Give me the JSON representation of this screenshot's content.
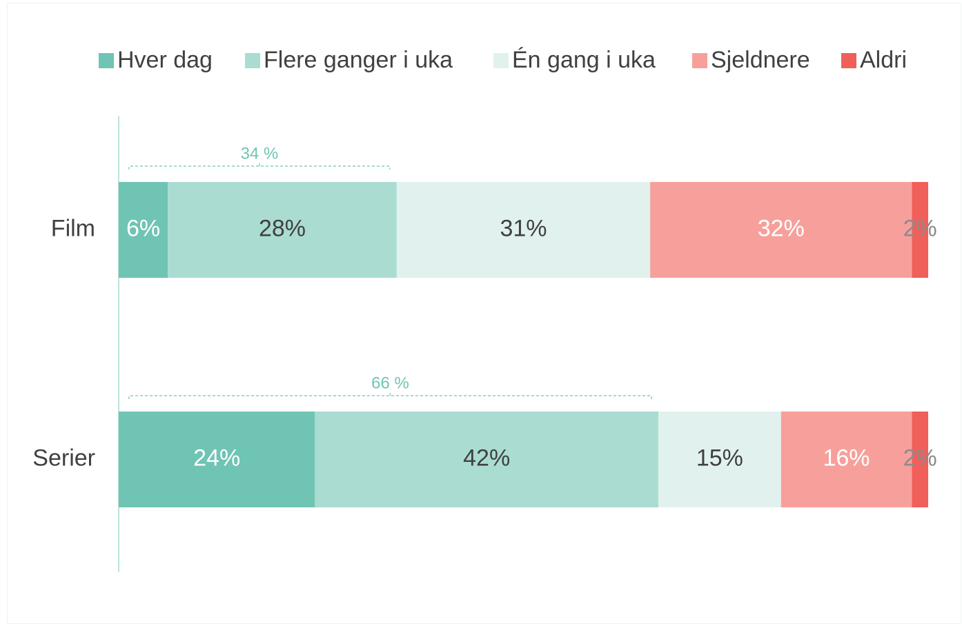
{
  "chart_data": {
    "type": "stacked-bar-horizontal",
    "categories": [
      "Film",
      "Serier"
    ],
    "series": [
      {
        "name": "Hver dag",
        "color": "#70c4b4",
        "label_color": "#ffffff",
        "values": [
          6,
          24
        ],
        "value_labels": [
          "6%",
          "24%"
        ]
      },
      {
        "name": "Flere ganger i uka",
        "color": "#aadcd2",
        "label_color": "#404040",
        "values": [
          28,
          42
        ],
        "value_labels": [
          "28%",
          "42%"
        ]
      },
      {
        "name": "Én gang i uka",
        "color": "#e1f2ee",
        "label_color": "#404040",
        "values": [
          31,
          15
        ],
        "value_labels": [
          "31%",
          "15%"
        ]
      },
      {
        "name": "Sjeldnere",
        "color": "#f7a09b",
        "label_color": "#ffffff",
        "values": [
          32,
          16
        ],
        "value_labels": [
          "32%",
          "16%"
        ]
      },
      {
        "name": "Aldri",
        "color": "#f05f5a",
        "label_color": "#8c8c8c",
        "values": [
          2,
          2
        ],
        "value_labels": [
          "2%",
          "2%"
        ]
      }
    ],
    "xlim": [
      0,
      99
    ],
    "annotations": [
      {
        "category": 0,
        "value": 34,
        "label": "34 %"
      },
      {
        "category": 1,
        "value": 66,
        "label": "66 %"
      }
    ],
    "annotation_color": "#70c4b4",
    "legend": "top"
  }
}
